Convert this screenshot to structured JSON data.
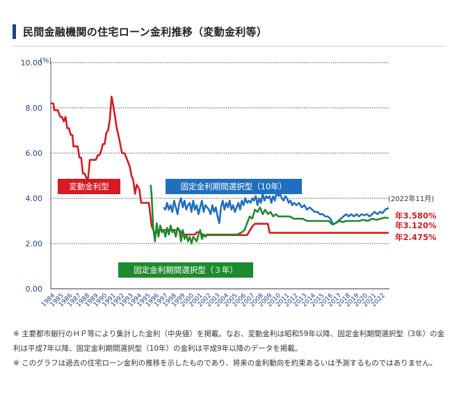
{
  "header": {
    "title": "民間金融機関の住宅ローン金利推移（変動金利等）"
  },
  "chart_data": {
    "type": "line",
    "yunit": "(%)",
    "ylim": [
      0,
      10
    ],
    "yticks": [
      "0.00",
      "2.00",
      "4.00",
      "6.00",
      "8.00",
      "10.00"
    ],
    "ytick_values": [
      0,
      2,
      4,
      6,
      8,
      10
    ],
    "xlim": [
      1984,
      2023
    ],
    "xticks": [
      "1984",
      "1985",
      "1986",
      "1987",
      "1988",
      "1989",
      "1990",
      "1991",
      "1992",
      "1993",
      "1994",
      "1995",
      "1996",
      "1997",
      "1998",
      "1999",
      "2000",
      "2001",
      "2002",
      "2003",
      "2004",
      "2005",
      "2006",
      "2007",
      "2008",
      "2009",
      "2010",
      "2011",
      "2012",
      "2013",
      "2014",
      "2015",
      "2016",
      "2017",
      "2018",
      "2019",
      "2020",
      "2021",
      "2022"
    ],
    "grid": true,
    "date_note": "(2022年11月)",
    "series": [
      {
        "name": "変動金利型",
        "color": "#d71920",
        "end_label": "年2.475%",
        "x": [
          1984.0,
          1984.3,
          1984.4,
          1984.8,
          1985.1,
          1985.3,
          1985.5,
          1985.7,
          1985.9,
          1986.1,
          1986.3,
          1986.5,
          1986.6,
          1986.8,
          1987.1,
          1987.3,
          1987.5,
          1987.7,
          1987.9,
          1988.1,
          1988.3,
          1988.5,
          1989.2,
          1989.4,
          1989.6,
          1989.8,
          1990.0,
          1990.2,
          1990.4,
          1990.6,
          1990.8,
          1991.0,
          1991.2,
          1991.4,
          1991.6,
          1991.9,
          1992.2,
          1992.5,
          1992.8,
          1993.1,
          1993.3,
          1993.5,
          1993.7,
          1993.9,
          1994.2,
          1994.4,
          1994.7,
          1995.1,
          1995.3,
          1995.6,
          1995.9,
          1996.2,
          1996.5,
          1998.8,
          1999.2,
          1999.4,
          1999.6,
          2000.6,
          2000.8,
          2001.2,
          2001.5,
          2006.6,
          2006.8,
          2007.0,
          2007.2,
          2007.5,
          2009.0,
          2009.2,
          2022.9
        ],
        "values": [
          8.2,
          8.2,
          7.9,
          7.9,
          7.6,
          7.6,
          7.4,
          7.6,
          7.1,
          7.1,
          6.8,
          6.8,
          6.3,
          6.3,
          6.3,
          5.8,
          5.8,
          5.1,
          5.1,
          4.9,
          4.9,
          5.7,
          5.7,
          5.9,
          5.9,
          6.1,
          6.4,
          6.4,
          6.9,
          7.0,
          7.5,
          8.5,
          8.1,
          7.6,
          7.1,
          6.6,
          6.0,
          6.0,
          5.7,
          5.4,
          5.0,
          4.8,
          4.2,
          4.6,
          4.4,
          3.8,
          3.8,
          3.8,
          3.8,
          2.8,
          2.5,
          2.5,
          2.6,
          2.6,
          2.4,
          2.4,
          2.4,
          2.4,
          2.5,
          2.5,
          2.375,
          2.375,
          2.5,
          2.625,
          2.75,
          2.875,
          2.875,
          2.475,
          2.475
        ]
      },
      {
        "name": "固定金利期間選択型（10年）",
        "color": "#1f6fbf",
        "end_label": "年3.580%",
        "x": [
          1997.0,
          1997.2,
          1997.4,
          1997.6,
          1997.8,
          1998.0,
          1998.2,
          1998.4,
          1998.6,
          1998.8,
          1999.0,
          1999.2,
          1999.4,
          1999.6,
          1999.8,
          2000.0,
          2000.2,
          2000.4,
          2000.6,
          2000.8,
          2001.0,
          2001.2,
          2001.4,
          2001.6,
          2001.8,
          2002.0,
          2002.2,
          2002.4,
          2002.6,
          2002.8,
          2003.0,
          2003.2,
          2003.4,
          2003.6,
          2003.8,
          2004.0,
          2004.2,
          2004.4,
          2004.6,
          2004.8,
          2005.0,
          2005.2,
          2005.4,
          2005.6,
          2005.8,
          2006.0,
          2006.2,
          2006.4,
          2006.6,
          2006.8,
          2007.0,
          2007.2,
          2007.4,
          2007.6,
          2007.8,
          2008.0,
          2008.2,
          2008.4,
          2008.6,
          2008.8,
          2009.0,
          2009.2,
          2009.4,
          2009.6,
          2009.8,
          2010.0,
          2010.2,
          2010.4,
          2010.6,
          2010.8,
          2011.0,
          2011.2,
          2011.4,
          2011.6,
          2011.8,
          2012.0,
          2012.3,
          2012.6,
          2012.9,
          2013.2,
          2013.5,
          2013.8,
          2014.1,
          2014.4,
          2014.7,
          2015.0,
          2015.3,
          2015.6,
          2015.9,
          2016.2,
          2016.5,
          2016.8,
          2017.1,
          2017.4,
          2017.7,
          2018.0,
          2018.3,
          2018.6,
          2018.9,
          2019.2,
          2019.5,
          2019.8,
          2020.1,
          2020.4,
          2020.7,
          2021.0,
          2021.3,
          2021.6,
          2021.9,
          2022.2,
          2022.5,
          2022.9
        ],
        "values": [
          3.6,
          3.5,
          3.8,
          3.5,
          3.7,
          3.4,
          3.9,
          3.6,
          3.3,
          3.8,
          4.0,
          3.6,
          3.9,
          3.5,
          3.7,
          3.8,
          3.4,
          3.9,
          3.5,
          3.7,
          3.3,
          3.6,
          3.9,
          3.4,
          3.7,
          3.6,
          3.5,
          3.3,
          3.7,
          3.4,
          3.6,
          3.2,
          2.9,
          3.6,
          3.9,
          3.5,
          3.8,
          3.6,
          3.9,
          3.5,
          3.7,
          3.4,
          3.6,
          3.8,
          3.5,
          3.9,
          3.7,
          4.0,
          3.8,
          3.9,
          3.8,
          4.0,
          3.9,
          4.1,
          3.7,
          4.0,
          3.8,
          4.2,
          3.9,
          4.1,
          4.0,
          4.1,
          3.8,
          4.1,
          3.9,
          4.3,
          4.1,
          4.2,
          4.0,
          3.9,
          4.1,
          4.0,
          3.8,
          3.9,
          3.7,
          3.8,
          3.7,
          3.8,
          3.6,
          3.7,
          3.5,
          3.6,
          3.5,
          3.4,
          3.4,
          3.3,
          3.3,
          3.2,
          3.2,
          3.1,
          2.85,
          2.9,
          3.0,
          3.1,
          3.2,
          3.3,
          3.2,
          3.3,
          3.2,
          3.3,
          3.2,
          3.3,
          3.25,
          3.3,
          3.2,
          3.3,
          3.4,
          3.3,
          3.4,
          3.35,
          3.5,
          3.58
        ]
      },
      {
        "name": "固定金利期間選択型（３年）",
        "color": "#1e8a2e",
        "end_label": "年3.120%",
        "x": [
          1995.5,
          1995.6,
          1995.8,
          1996.0,
          1996.2,
          1996.4,
          1996.6,
          1996.8,
          1997.0,
          1997.2,
          1997.4,
          1997.6,
          1997.8,
          1998.0,
          1998.2,
          1998.4,
          1998.6,
          1998.8,
          1999.0,
          1999.2,
          1999.4,
          1999.6,
          1999.8,
          2000.0,
          2000.2,
          2000.4,
          2000.6,
          2000.8,
          2001.0,
          2001.2,
          2001.4,
          2001.6,
          2001.8,
          2002.0,
          2002.5,
          2003.0,
          2003.5,
          2004.0,
          2004.5,
          2005.0,
          2005.5,
          2006.0,
          2006.3,
          2006.6,
          2006.9,
          2007.2,
          2007.5,
          2007.8,
          2008.1,
          2008.4,
          2008.7,
          2009.0,
          2009.3,
          2009.6,
          2009.9,
          2010.2,
          2010.6,
          2011.0,
          2011.5,
          2012.0,
          2012.5,
          2013.0,
          2013.5,
          2014.0,
          2014.5,
          2015.0,
          2015.5,
          2016.0,
          2016.4,
          2016.8,
          2017.2,
          2017.6,
          2018.0,
          2018.5,
          2019.0,
          2019.5,
          2020.0,
          2020.5,
          2021.0,
          2021.5,
          2022.0,
          2022.5,
          2022.9
        ],
        "values": [
          4.6,
          4.2,
          2.7,
          2.1,
          2.9,
          2.3,
          2.8,
          2.5,
          2.6,
          2.3,
          2.7,
          2.4,
          2.8,
          2.5,
          2.6,
          2.3,
          2.7,
          2.6,
          2.1,
          2.6,
          2.2,
          2.4,
          2.1,
          2.3,
          2.0,
          2.3,
          2.2,
          2.1,
          2.4,
          2.6,
          2.2,
          2.4,
          2.3,
          2.4,
          2.4,
          2.4,
          2.4,
          2.4,
          2.4,
          2.4,
          2.4,
          2.5,
          2.6,
          2.9,
          3.2,
          3.1,
          3.5,
          3.4,
          3.6,
          3.3,
          3.5,
          3.3,
          3.4,
          3.2,
          3.3,
          3.2,
          3.2,
          3.2,
          3.2,
          3.1,
          3.1,
          3.1,
          3.0,
          3.0,
          3.0,
          3.0,
          3.0,
          3.0,
          2.85,
          2.9,
          3.0,
          2.95,
          3.0,
          3.0,
          3.0,
          3.0,
          3.05,
          3.0,
          3.1,
          3.05,
          3.1,
          3.15,
          3.12
        ]
      }
    ]
  },
  "notes": [
    "※ 主要都市銀行のＨＰ等により集計した金利（中央値）を掲載。なお、変動金利は昭和59年以降、固定金利期間選択型（3年）の金利は平成7年以降、固定金利期間選択型（10年）の金利は平成9年以降のデータを掲載。",
    "※ このグラフは過去の住宅ローン金利の推移を示したものであり、将来の金利動向を約束あるいは予測するものではありません。"
  ]
}
